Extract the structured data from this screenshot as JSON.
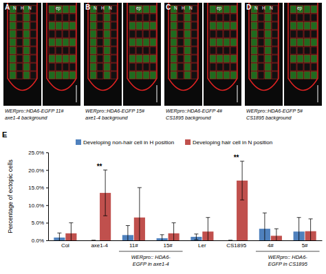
{
  "panels": [
    {
      "letter": "A",
      "markers": [
        "N",
        "H",
        "N"
      ],
      "epidermis": "ep",
      "caption": "WERpro::HDA6-EGFP 11#",
      "background": "axe1-4 background"
    },
    {
      "letter": "B",
      "markers": [
        "N",
        "H",
        "N"
      ],
      "epidermis": "ep",
      "caption": "WERpro::HDA6-EGFP 15#",
      "background": "axe1-4 background"
    },
    {
      "letter": "C",
      "markers": [
        "N",
        "H",
        "N"
      ],
      "epidermis": "ep",
      "caption": "WERpro::HDA6-EGFP 4#",
      "background": "CS1895 background"
    },
    {
      "letter": "D",
      "markers": [
        "N",
        "H",
        "N"
      ],
      "epidermis": "ep",
      "caption": "WERpro::HDA6-EGFP 5#",
      "background": "CS1895 background"
    }
  ],
  "chart_data": {
    "type": "bar",
    "letter": "E",
    "y_label": "Percentage of ectopic cells",
    "categories": [
      "Col",
      "axe1-4",
      "11#",
      "15#",
      "Ler",
      "CS1895",
      "4#",
      "5#"
    ],
    "groups": [
      {
        "label": [
          "WERpro:: HDA6-",
          "EGFP in axe1-4"
        ],
        "start": 2,
        "end": 3
      },
      {
        "label": [
          "WERpro:: HDA6-",
          "EGFP in CS1895"
        ],
        "start": 6,
        "end": 7
      }
    ],
    "series": [
      {
        "name": "Developing non-hair cell in H position",
        "color": "#4f81bd",
        "values": [
          0.8,
          0,
          1.5,
          0.6,
          1.0,
          0,
          3.3,
          2.5
        ],
        "errors": [
          1.3,
          0,
          2.7,
          1.0,
          0.8,
          0,
          4.5,
          4.0
        ]
      },
      {
        "name": "Developing hair cell in N position",
        "color": "#c0504d",
        "values": [
          2.0,
          13.5,
          6.5,
          2.0,
          2.5,
          17.0,
          1.3,
          2.6
        ],
        "errors": [
          3.0,
          6.5,
          8.5,
          3.0,
          4.0,
          5.5,
          2.0,
          3.5
        ]
      }
    ],
    "significance": [
      null,
      "**",
      null,
      null,
      null,
      "**",
      null,
      null
    ],
    "ylim": [
      0,
      25
    ],
    "yticks": [
      {
        "value": 0,
        "label": "0.0%"
      },
      {
        "value": 5,
        "label": "5.0%"
      },
      {
        "value": 10,
        "label": "10.0%"
      },
      {
        "value": 15,
        "label": "15.0%"
      },
      {
        "value": 20,
        "label": "20.0%"
      },
      {
        "value": 25,
        "label": "25.0%"
      }
    ],
    "legend": "top"
  }
}
